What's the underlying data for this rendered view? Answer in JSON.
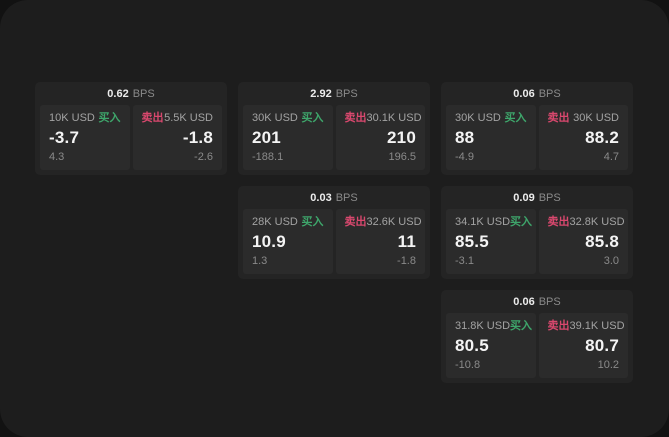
{
  "labels": {
    "bps": "BPS",
    "buy": "买入",
    "sell": "卖出"
  },
  "colors": {
    "backdrop": "#121212",
    "canvas_bg": "#1d1d1d",
    "card_bg": "#242424",
    "panel_bg": "#2b2b2b",
    "buy_green": "#3ea66b",
    "sell_rose": "#d9486e"
  },
  "cards": [
    {
      "bps": "0.62",
      "buy": {
        "size": "10K USD",
        "main": "-3.7",
        "sub": "4.3"
      },
      "sell": {
        "size": "5.5K USD",
        "main": "-1.8",
        "sub": "-2.6"
      }
    },
    {
      "bps": "2.92",
      "buy": {
        "size": "30K USD",
        "main": "201",
        "sub": "-188.1"
      },
      "sell": {
        "size": "30.1K USD",
        "main": "210",
        "sub": "196.5"
      }
    },
    {
      "bps": "0.06",
      "buy": {
        "size": "30K USD",
        "main": "88",
        "sub": "-4.9"
      },
      "sell": {
        "size": "30K USD",
        "main": "88.2",
        "sub": "4.7"
      }
    },
    {
      "bps": "0.03",
      "buy": {
        "size": "28K USD",
        "main": "10.9",
        "sub": "1.3"
      },
      "sell": {
        "size": "32.6K USD",
        "main": "11",
        "sub": "-1.8"
      }
    },
    {
      "bps": "0.09",
      "buy": {
        "size": "34.1K USD",
        "main": "85.5",
        "sub": "-3.1"
      },
      "sell": {
        "size": "32.8K USD",
        "main": "85.8",
        "sub": "3.0"
      }
    },
    {
      "bps": "0.06",
      "buy": {
        "size": "31.8K USD",
        "main": "80.5",
        "sub": "-10.8"
      },
      "sell": {
        "size": "39.1K USD",
        "main": "80.7",
        "sub": "10.2"
      }
    }
  ]
}
